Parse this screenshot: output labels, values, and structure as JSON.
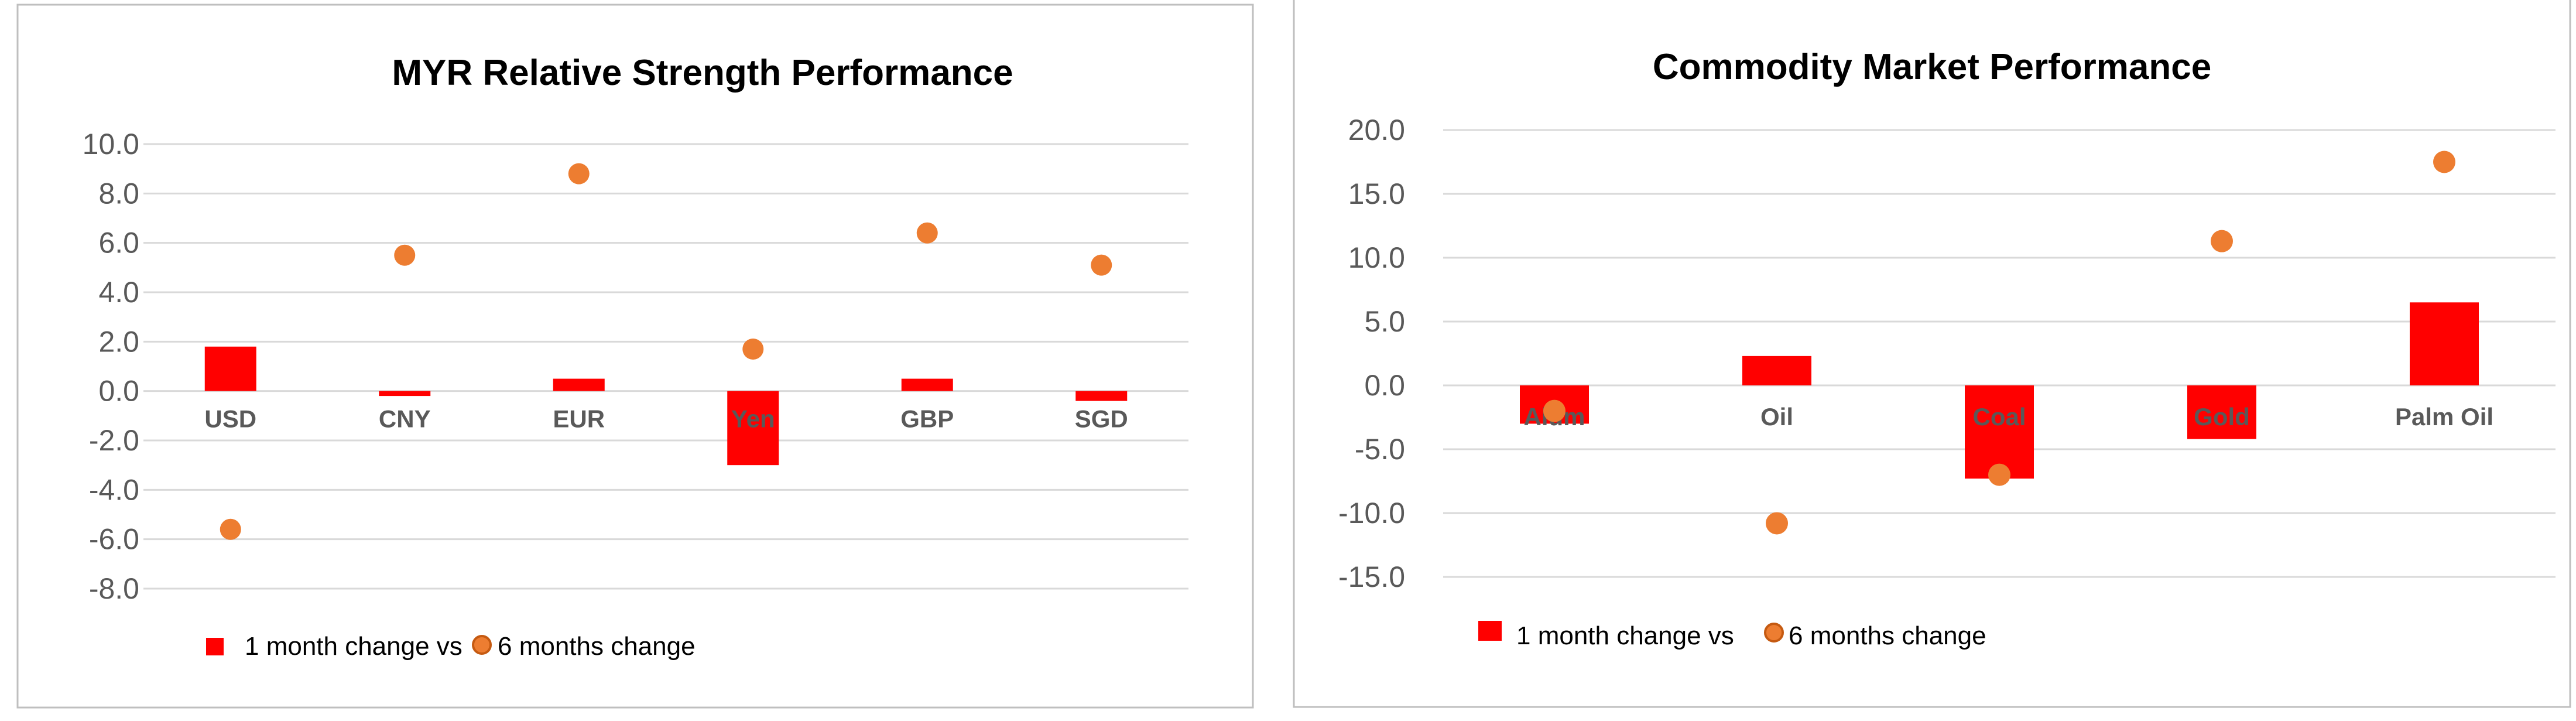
{
  "chart_data": [
    {
      "type": "bar",
      "title": "MYR Relative Strength Performance",
      "categories": [
        "USD",
        "CNY",
        "EUR",
        "Yen",
        "GBP",
        "SGD"
      ],
      "series": [
        {
          "name": "1 month change vs",
          "kind": "bar",
          "values": [
            1.8,
            -0.2,
            0.5,
            -3.0,
            0.5,
            -0.4
          ]
        },
        {
          "name": "6 months change",
          "kind": "scatter",
          "values": [
            -5.6,
            5.5,
            8.8,
            1.7,
            6.4,
            5.1
          ]
        }
      ],
      "ylim": [
        -8,
        10
      ],
      "yticks": [
        "10.0",
        "8.0",
        "6.0",
        "4.0",
        "2.0",
        "0.0",
        "-2.0",
        "-4.0",
        "-6.0",
        "-8.0"
      ],
      "legend": "bottom-left",
      "grid": true
    },
    {
      "type": "bar",
      "title": "Commodity Market Performance",
      "categories": [
        "Alum",
        "Oil",
        "Coal",
        "Gold",
        "Palm Oil"
      ],
      "series": [
        {
          "name": "1 month change vs",
          "kind": "bar",
          "values": [
            -3.0,
            2.3,
            -7.3,
            -4.2,
            6.5
          ]
        },
        {
          "name": "6 months change",
          "kind": "scatter",
          "values": [
            -2.0,
            -10.8,
            -7.0,
            11.3,
            17.5
          ]
        }
      ],
      "ylim": [
        -15,
        20
      ],
      "yticks": [
        "20.0",
        "15.0",
        "10.0",
        "5.0",
        "0.0",
        "-5.0",
        "-10.0",
        "-15.0"
      ],
      "legend": "bottom-left",
      "grid": true
    }
  ],
  "colors": {
    "bar": "#ff0000",
    "point": "#ed7d31",
    "point_edge": "#c55a11",
    "grid": "#d9d9d9",
    "axis_text": "#595959"
  }
}
